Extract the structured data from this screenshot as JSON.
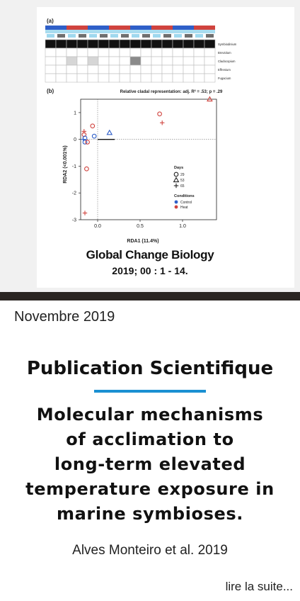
{
  "figure": {
    "panel_a_label": "(a)",
    "panel_b_label": "(b)",
    "heatmap_rows": [
      "Symbiodinium",
      "Breviolum",
      "Cladocopium",
      "Effrenium",
      "Fugacium"
    ],
    "panel_b_title": "Relative cladal representation: adj. R² = .53; p = .29",
    "journal": "Global Change Biology",
    "citation": "2019; 00 : 1 - 14.",
    "colors": {
      "control": "#2f5fc8",
      "heat": "#d0433e",
      "light_blue": "#a9dcef",
      "dark_gray": "#6f6f6f"
    }
  },
  "chart_data": {
    "type": "scatter",
    "title": "Relative cladal representation: adj. R² = .53; p = .29",
    "xlabel": "RDA1 (11.4%)",
    "ylabel": "RDA2 (<0.001%)",
    "xlim": [
      -0.2,
      1.4
    ],
    "ylim": [
      -3,
      1.5
    ],
    "xticks": [
      "0.0",
      "0.5",
      "1.0"
    ],
    "xtick_values": [
      0,
      0.5,
      1
    ],
    "yticks": [
      "1",
      "0",
      "-1",
      "-2",
      "-3"
    ],
    "ytick_values": [
      1,
      0,
      -1,
      -2,
      -3
    ],
    "legend_days_title": "Days",
    "legend_days": [
      {
        "label": "29",
        "shape": "circle"
      },
      {
        "label": "53",
        "shape": "triangle"
      },
      {
        "label": "65",
        "shape": "plus"
      }
    ],
    "legend_conditions_title": "Conditions",
    "legend_conditions": [
      {
        "label": "Control",
        "color": "#2f5fc8"
      },
      {
        "label": "Heat",
        "color": "#d0433e"
      }
    ],
    "points": [
      {
        "x": 1.32,
        "y": 1.5,
        "shape": "triangle",
        "cond": "Heat"
      },
      {
        "x": 0.73,
        "y": 0.95,
        "shape": "circle",
        "cond": "Heat"
      },
      {
        "x": 0.76,
        "y": 0.62,
        "shape": "plus",
        "cond": "Heat"
      },
      {
        "x": 0.14,
        "y": 0.25,
        "shape": "triangle",
        "cond": "Control"
      },
      {
        "x": -0.06,
        "y": 0.5,
        "shape": "circle",
        "cond": "Heat"
      },
      {
        "x": -0.16,
        "y": 0.3,
        "shape": "plus",
        "cond": "Heat"
      },
      {
        "x": -0.16,
        "y": 0.18,
        "shape": "circle",
        "cond": "Heat"
      },
      {
        "x": -0.04,
        "y": 0.12,
        "shape": "circle",
        "cond": "Control"
      },
      {
        "x": -0.15,
        "y": 0.05,
        "shape": "circle",
        "cond": "Control"
      },
      {
        "x": -0.17,
        "y": 0.0,
        "shape": "plus",
        "cond": "Control"
      },
      {
        "x": -0.15,
        "y": -0.1,
        "shape": "circle",
        "cond": "Control"
      },
      {
        "x": -0.12,
        "y": -0.1,
        "shape": "circle",
        "cond": "Heat"
      },
      {
        "x": -0.13,
        "y": -1.1,
        "shape": "circle",
        "cond": "Heat"
      },
      {
        "x": -0.15,
        "y": -2.75,
        "shape": "plus",
        "cond": "Heat"
      }
    ],
    "arrow": {
      "x0": 0.0,
      "y0": 0.0,
      "x1": 0.2,
      "y1": 0.0
    }
  },
  "article": {
    "date": "Novembre 2019",
    "category": "Publication Scientifique",
    "title_lines": [
      "Molecular mechanisms",
      "of acclimation to",
      "long-term elevated",
      "temperature exposure in",
      "marine symbioses."
    ],
    "authors": "Alves Monteiro et al. 2019",
    "read_more": "lire la suite..."
  }
}
